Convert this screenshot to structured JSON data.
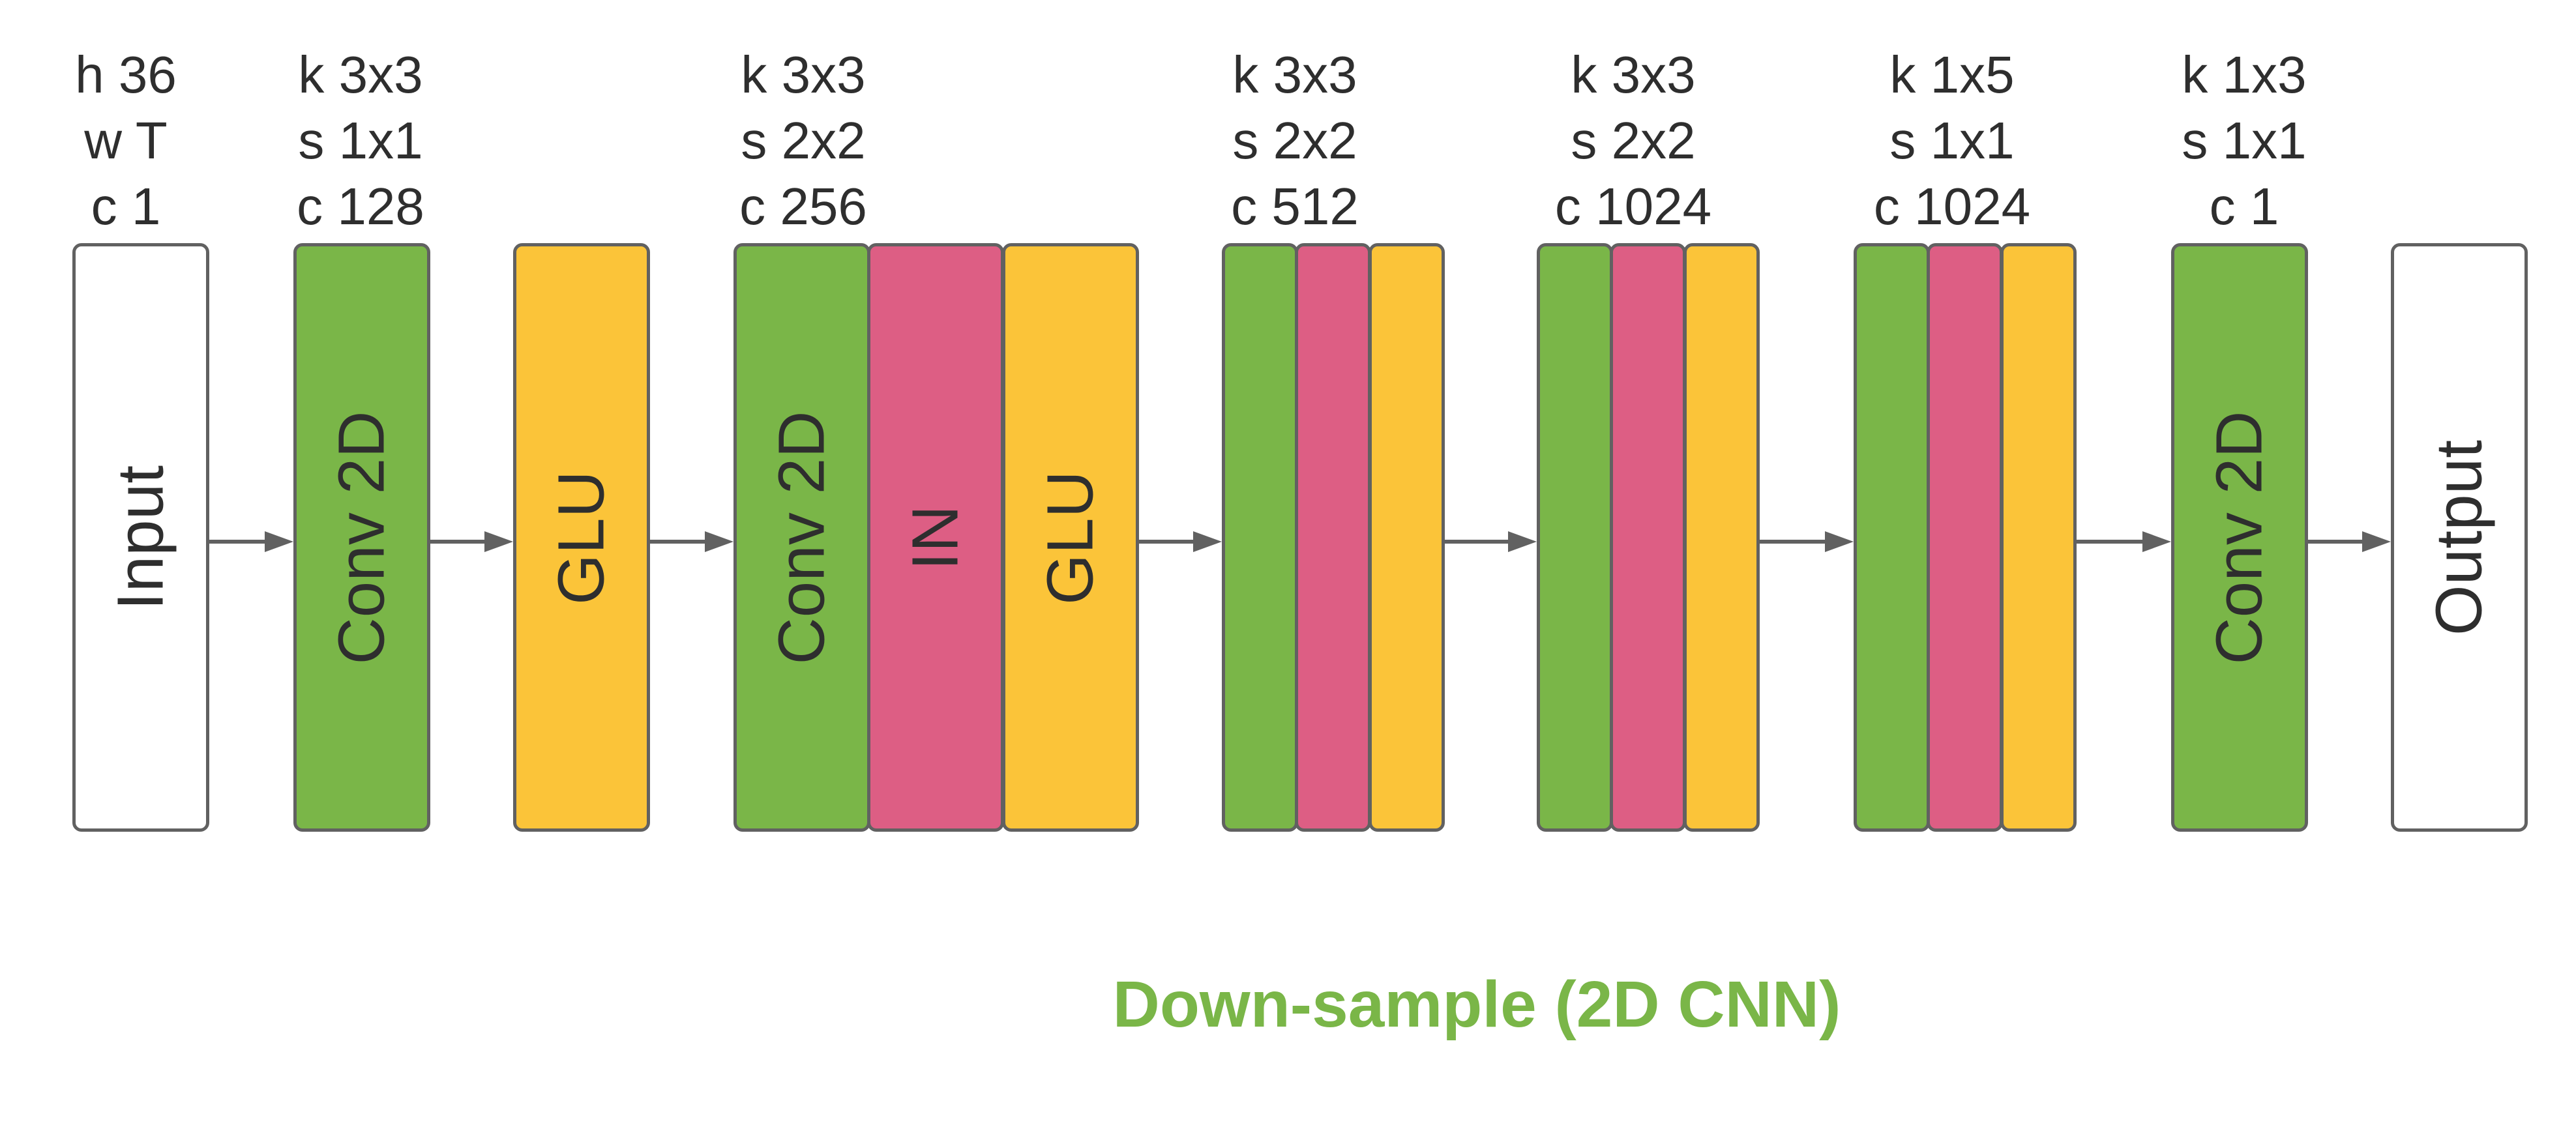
{
  "params": {
    "input": [
      "h 36",
      "w T",
      "c 1"
    ],
    "conv1": [
      "k 3x3",
      "s 1x1",
      "c 128"
    ],
    "ds1": [
      "k 3x3",
      "s 2x2",
      "c 256"
    ],
    "ds2": [
      "k 3x3",
      "s 2x2",
      "c 512"
    ],
    "ds3": [
      "k 3x3",
      "s 2x2",
      "c 1024"
    ],
    "ds4": [
      "k 1x5",
      "s 1x1",
      "c 1024"
    ],
    "conv_out": [
      "k 1x3",
      "s 1x1",
      "c 1"
    ]
  },
  "labels": {
    "input": "Input",
    "conv": "Conv 2D",
    "glu": "GLU",
    "instance_norm": "IN",
    "output": "Output"
  },
  "caption": "Down-sample (2D CNN)",
  "colors": {
    "conv": "#7ab648",
    "instance_norm": "#dd5e84",
    "glu": "#fbc439",
    "io": "#ffffff",
    "caption": "#7ab648"
  }
}
